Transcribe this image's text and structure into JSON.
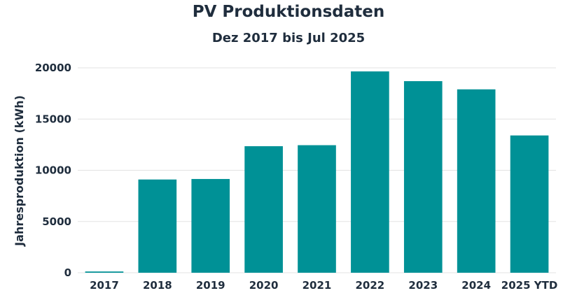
{
  "chart_data": {
    "type": "bar",
    "title": "PV Produktionsdaten",
    "subtitle": "Dez 2017 bis Jul 2025",
    "xlabel": "",
    "ylabel": "Jahresproduktion (kWh)",
    "categories": [
      "2017",
      "2018",
      "2019",
      "2020",
      "2021",
      "2022",
      "2023",
      "2024",
      "2025 YTD"
    ],
    "values": [
      120,
      9100,
      9150,
      12350,
      12450,
      19650,
      18700,
      17900,
      13400
    ],
    "ylim": [
      0,
      20000
    ],
    "yticks": [
      0,
      5000,
      10000,
      15000,
      20000
    ],
    "grid": true,
    "bar_color": "#009196"
  }
}
